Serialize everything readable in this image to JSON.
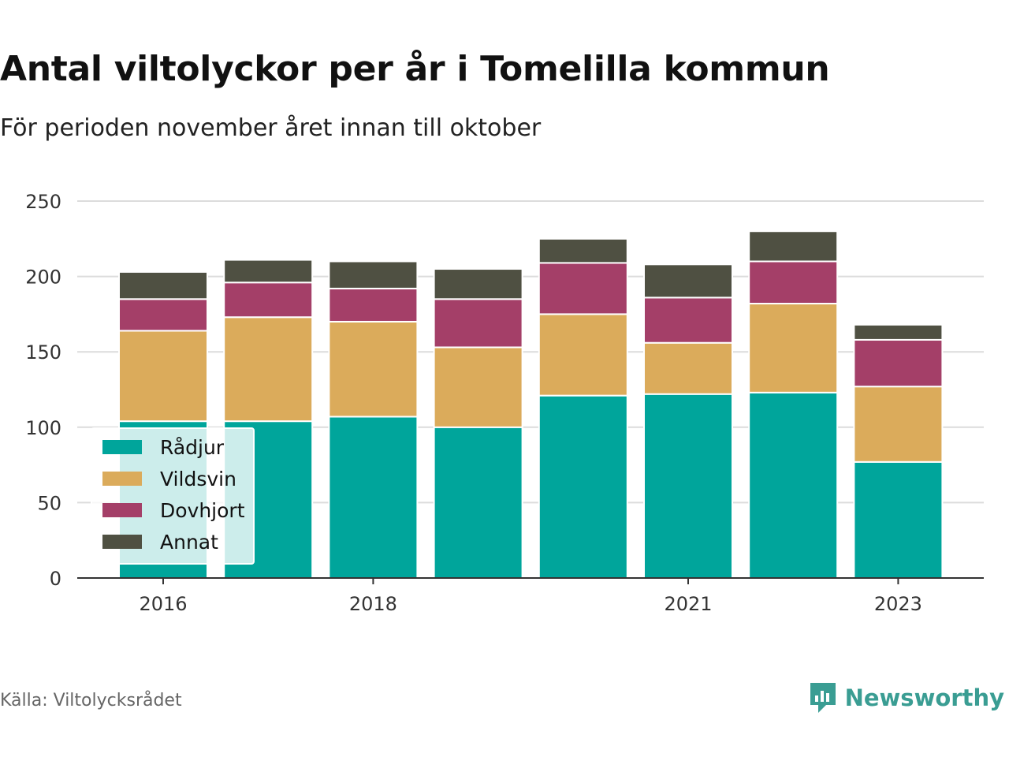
{
  "title": "Antal viltolyckor per år i Tomelilla kommun",
  "subtitle": "För perioden november året innan till oktober",
  "source": "Källa: Viltolycksrådet",
  "brand": {
    "name": "Newsworthy",
    "icon": "newsworthy-logo-icon",
    "color": "#3a9d93"
  },
  "chart_data": {
    "type": "bar",
    "stacked": true,
    "title": "",
    "xlabel": "",
    "ylabel": "",
    "ylim": [
      0,
      250
    ],
    "yticks": [
      0,
      50,
      100,
      150,
      200,
      250
    ],
    "grid": true,
    "legend_position": "bottom-left",
    "categories": [
      "2016",
      "2017",
      "2018",
      "2019",
      "2020",
      "2021",
      "2022",
      "2023"
    ],
    "x_tick_labels": [
      "2016",
      "2018",
      "2021",
      "2023"
    ],
    "series": [
      {
        "name": "Rådjur",
        "color": "#00a59b",
        "values": [
          104,
          104,
          107,
          100,
          121,
          122,
          123,
          77
        ]
      },
      {
        "name": "Vildsvin",
        "color": "#dbab5b",
        "values": [
          60,
          69,
          63,
          53,
          54,
          34,
          59,
          50
        ]
      },
      {
        "name": "Dovhjort",
        "color": "#a43f68",
        "values": [
          21,
          23,
          22,
          32,
          34,
          30,
          28,
          31
        ]
      },
      {
        "name": "Annat",
        "color": "#4f5042",
        "values": [
          18,
          15,
          18,
          20,
          16,
          22,
          20,
          10
        ]
      }
    ]
  }
}
